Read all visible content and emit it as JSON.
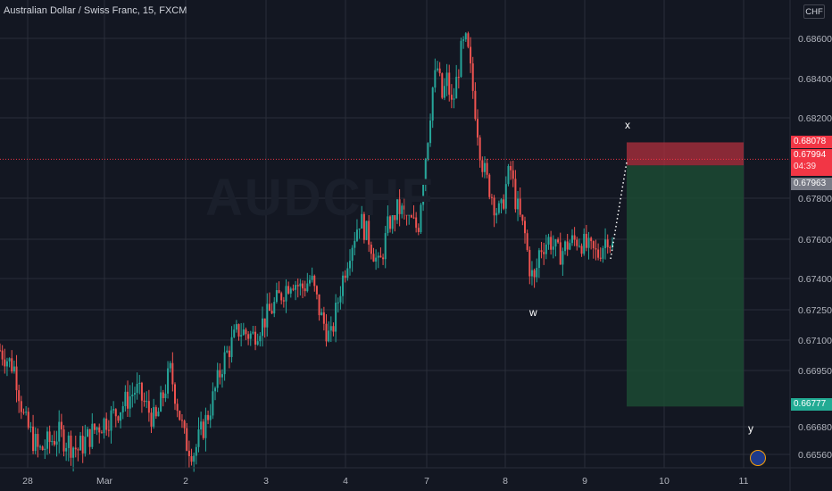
{
  "header": {
    "title": "Australian Dollar / Swiss Franc, 15, FXCM"
  },
  "currency_button": "CHF",
  "watermark": "AUDCHF",
  "price_tags": {
    "stop": "0.68078",
    "current": "0.67994",
    "countdown": "04:39",
    "entry": "0.67963",
    "target": "0.66777"
  },
  "wave_labels": {
    "x": "x",
    "w": "w",
    "y": "y"
  },
  "colors": {
    "background": "#131722",
    "grid": "#2a2e39",
    "up_candle": "#26a69a",
    "down_candle": "#ef5350",
    "stop_zone": "#b2303d",
    "profit_zone": "#1c4a32",
    "current_line": "#f23645"
  },
  "chart_data": {
    "type": "candlestick",
    "title": "Australian Dollar / Swiss Franc, 15, FXCM",
    "xlabel": "",
    "ylabel": "",
    "y_ticks": [
      0.6656,
      0.6668,
      0.6695,
      0.671,
      0.6725,
      0.674,
      0.676,
      0.678,
      0.682,
      0.684,
      0.686
    ],
    "y_tick_labels": [
      "0.66560",
      "0.66680",
      "0.66950",
      "0.67100",
      "0.67250",
      "0.67400",
      "0.67600",
      "0.67800",
      "0.68200",
      "0.68400",
      "0.68600"
    ],
    "x_tick_labels": [
      "28",
      "Mar",
      "2",
      "3",
      "4",
      "7",
      "8",
      "9",
      "10",
      "11"
    ],
    "grid": true,
    "anchor_path": [
      [
        0,
        0.6705
      ],
      [
        3,
        0.6696
      ],
      [
        5,
        0.6671
      ],
      [
        8,
        0.6657
      ],
      [
        12,
        0.6665
      ],
      [
        16,
        0.6658
      ],
      [
        20,
        0.6668
      ],
      [
        24,
        0.6675
      ],
      [
        28,
        0.6686
      ],
      [
        32,
        0.667
      ],
      [
        35,
        0.6695
      ],
      [
        38,
        0.6662
      ],
      [
        40,
        0.6657
      ],
      [
        43,
        0.6675
      ],
      [
        46,
        0.67
      ],
      [
        49,
        0.6715
      ],
      [
        52,
        0.6712
      ],
      [
        55,
        0.6722
      ],
      [
        58,
        0.6733
      ],
      [
        60,
        0.674
      ],
      [
        62,
        0.6735
      ],
      [
        64,
        0.674
      ],
      [
        66,
        0.6722
      ],
      [
        68,
        0.671
      ],
      [
        70,
        0.6735
      ],
      [
        72,
        0.6755
      ],
      [
        74,
        0.677
      ],
      [
        76,
        0.676
      ],
      [
        78,
        0.6745
      ],
      [
        80,
        0.6768
      ],
      [
        82,
        0.6775
      ],
      [
        84,
        0.677
      ],
      [
        86,
        0.6765
      ],
      [
        87,
        0.679
      ],
      [
        88,
        0.681
      ],
      [
        89,
        0.6835
      ],
      [
        90,
        0.6845
      ],
      [
        91,
        0.683
      ],
      [
        92,
        0.684
      ],
      [
        93,
        0.6825
      ],
      [
        94,
        0.684
      ],
      [
        95,
        0.6855
      ],
      [
        96,
        0.6858
      ],
      [
        97,
        0.684
      ],
      [
        98,
        0.682
      ],
      [
        99,
        0.68
      ],
      [
        100,
        0.679
      ],
      [
        101,
        0.6783
      ],
      [
        102,
        0.6775
      ],
      [
        103,
        0.6772
      ],
      [
        104,
        0.6785
      ],
      [
        105,
        0.6795
      ],
      [
        106,
        0.678
      ],
      [
        107,
        0.677
      ],
      [
        108,
        0.6762
      ],
      [
        109,
        0.6745
      ],
      [
        110,
        0.6738
      ],
      [
        111,
        0.6755
      ],
      [
        113,
        0.676
      ],
      [
        115,
        0.6752
      ],
      [
        117,
        0.6758
      ],
      [
        119,
        0.676
      ],
      [
        121,
        0.6755
      ],
      [
        123,
        0.6752
      ],
      [
        125,
        0.6762
      ],
      [
        126,
        0.6756
      ]
    ],
    "projection": [
      [
        126,
        0.675
      ],
      [
        128,
        0.6798
      ]
    ],
    "position": {
      "stop": 0.68078,
      "entry": 0.67963,
      "target": 0.66777,
      "current": 0.67994
    }
  }
}
